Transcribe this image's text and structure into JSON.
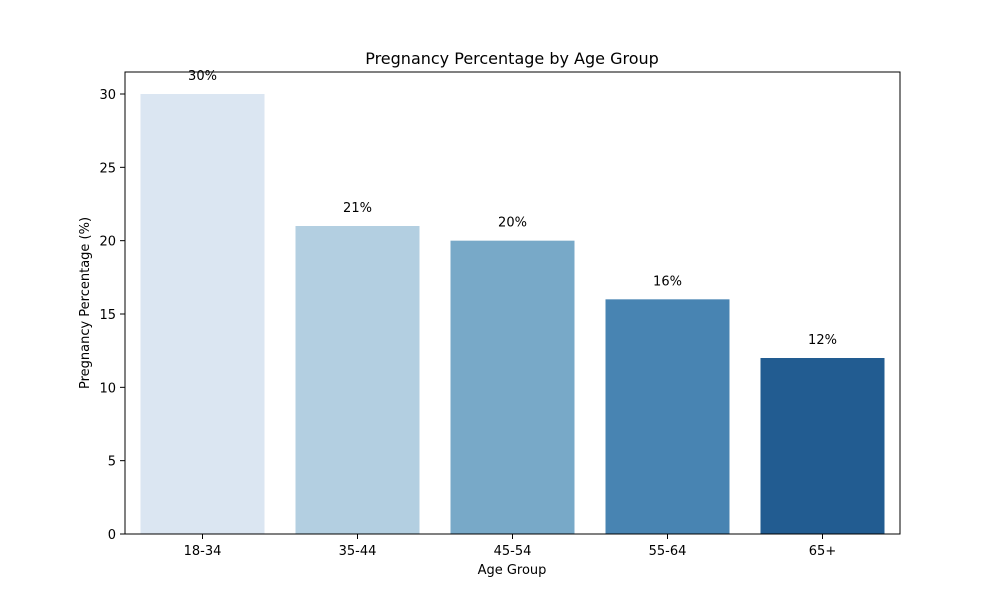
{
  "chart_data": {
    "type": "bar",
    "title": "Pregnancy Percentage by Age Group",
    "xlabel": "Age Group",
    "ylabel": "Pregnancy Percentage (%)",
    "categories": [
      "18-34",
      "35-44",
      "45-54",
      "55-64",
      "65+"
    ],
    "values": [
      30,
      21,
      20,
      16,
      12
    ],
    "data_labels": [
      "30%",
      "21%",
      "20%",
      "16%",
      "12%"
    ],
    "colors": [
      "#dbe6f2",
      "#b3cfe1",
      "#78a9c8",
      "#4884b2",
      "#225c91"
    ],
    "ylim": [
      0,
      31.5
    ],
    "yticks": [
      0,
      5,
      10,
      15,
      20,
      25,
      30
    ],
    "grid": false,
    "legend": "none"
  }
}
